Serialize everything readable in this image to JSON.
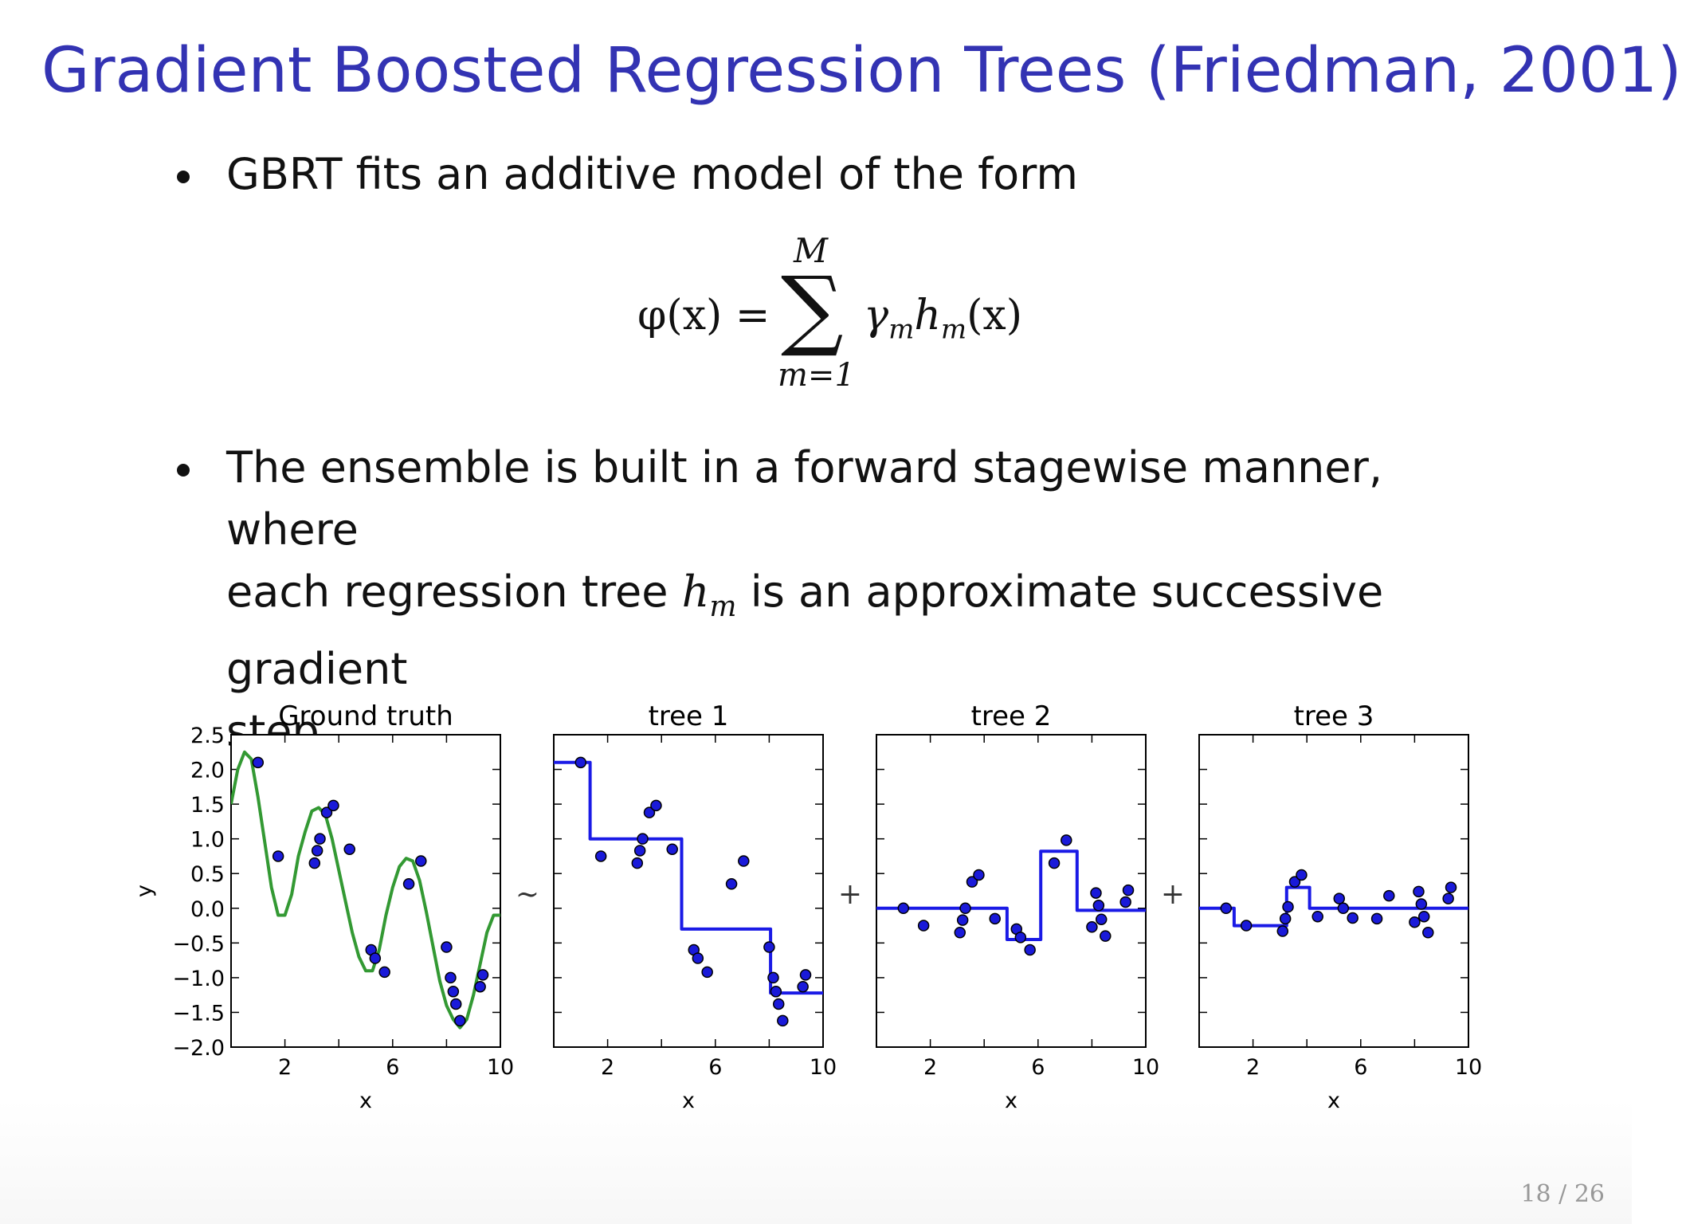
{
  "slide": {
    "title": "Gradient Boosted Regression Trees (Friedman, 2001)",
    "bullet1": "GBRT fits an additive model of the form",
    "equation": {
      "lhs": "φ(x) =",
      "sigma": "∑",
      "upper": "M",
      "lower": "m=1",
      "rhs_gamma": "γ",
      "rhs_gamma_sub": "m",
      "rhs_h": "h",
      "rhs_h_sub": "m",
      "rhs_arg": "(x)"
    },
    "bullet2_line1": "The ensemble is built in a forward stagewise manner, where",
    "bullet2_line2_a": "each regression tree ",
    "bullet2_line2_h": "h",
    "bullet2_line2_sub": "m",
    "bullet2_line2_b": " is an approximate successive gradient",
    "bullet2_line3": "step.",
    "page_number": "18 / 26",
    "operators": [
      "~",
      "+",
      "+"
    ]
  },
  "chart_data": [
    {
      "type": "line+scatter",
      "title": "Ground truth",
      "xlabel": "x",
      "ylabel": "y",
      "xlim": [
        0,
        10
      ],
      "ylim": [
        -2.0,
        2.5
      ],
      "xticks": [
        "2",
        "6",
        "10"
      ],
      "yticks": [
        "2.5",
        "2.0",
        "1.5",
        "1.0",
        "0.5",
        "0.0",
        "−0.5",
        "−1.0",
        "−1.5",
        "−2.0"
      ],
      "colors": {
        "curve": "#339933",
        "points": "#1a1ad9"
      },
      "curve_x": [
        0.0,
        0.25,
        0.5,
        0.75,
        1.0,
        1.25,
        1.5,
        1.75,
        2.0,
        2.25,
        2.5,
        2.75,
        3.0,
        3.25,
        3.5,
        3.75,
        4.0,
        4.25,
        4.5,
        4.75,
        5.0,
        5.25,
        5.5,
        5.75,
        6.0,
        6.25,
        6.5,
        6.75,
        7.0,
        7.25,
        7.5,
        7.75,
        8.0,
        8.25,
        8.5,
        8.75,
        9.0,
        9.25,
        9.5,
        9.75,
        10.0
      ],
      "curve_y": [
        1.5,
        2.0,
        2.25,
        2.15,
        1.6,
        0.95,
        0.3,
        -0.1,
        -0.1,
        0.2,
        0.75,
        1.1,
        1.4,
        1.45,
        1.35,
        1.0,
        0.55,
        0.1,
        -0.35,
        -0.7,
        -0.9,
        -0.9,
        -0.6,
        -0.1,
        0.3,
        0.6,
        0.72,
        0.68,
        0.4,
        -0.05,
        -0.55,
        -1.05,
        -1.4,
        -1.6,
        -1.72,
        -1.6,
        -1.25,
        -0.8,
        -0.35,
        -0.1,
        -0.1
      ],
      "points_x": [
        1.0,
        1.75,
        3.1,
        3.2,
        3.3,
        3.55,
        3.8,
        4.4,
        5.2,
        5.35,
        5.7,
        6.6,
        7.05,
        8.0,
        8.15,
        8.25,
        8.35,
        8.5,
        9.25,
        9.35
      ],
      "points_y": [
        2.1,
        0.75,
        0.65,
        0.83,
        1.0,
        1.38,
        1.48,
        0.85,
        -0.6,
        -0.72,
        -0.92,
        0.35,
        0.68,
        -0.56,
        -1.0,
        -1.2,
        -1.38,
        -1.62,
        -1.13,
        -0.96
      ]
    },
    {
      "type": "step+scatter",
      "title": "tree 1",
      "xlabel": "x",
      "xlim": [
        0,
        10
      ],
      "ylim": [
        -2.0,
        2.5
      ],
      "xticks": [
        "2",
        "6",
        "10"
      ],
      "colors": {
        "line": "#1a1ae6",
        "points": "#1a1ad9"
      },
      "step_x": [
        0,
        1.35,
        1.35,
        4.75,
        4.75,
        8.05,
        8.05,
        10
      ],
      "step_y": [
        2.1,
        2.1,
        1.0,
        1.0,
        -0.3,
        -0.3,
        -1.22,
        -1.22
      ],
      "points_x": [
        1.0,
        1.75,
        3.1,
        3.2,
        3.3,
        3.55,
        3.8,
        4.4,
        5.2,
        5.35,
        5.7,
        6.6,
        7.05,
        8.0,
        8.15,
        8.25,
        8.35,
        8.5,
        9.25,
        9.35
      ],
      "points_y": [
        2.1,
        0.75,
        0.65,
        0.83,
        1.0,
        1.38,
        1.48,
        0.85,
        -0.6,
        -0.72,
        -0.92,
        0.35,
        0.68,
        -0.56,
        -1.0,
        -1.2,
        -1.38,
        -1.62,
        -1.13,
        -0.96
      ]
    },
    {
      "type": "step+scatter",
      "title": "tree 2",
      "xlabel": "x",
      "xlim": [
        0,
        10
      ],
      "ylim": [
        -2.0,
        2.5
      ],
      "xticks": [
        "2",
        "6",
        "10"
      ],
      "colors": {
        "line": "#1a1ae6",
        "points": "#1a1ad9"
      },
      "step_x": [
        0,
        4.85,
        4.85,
        6.1,
        6.1,
        7.45,
        7.45,
        10
      ],
      "step_y": [
        0.0,
        0.0,
        -0.45,
        -0.45,
        0.82,
        0.82,
        -0.03,
        -0.03
      ],
      "points_x": [
        1.0,
        1.75,
        3.1,
        3.2,
        3.3,
        3.55,
        3.8,
        4.4,
        5.2,
        5.35,
        5.7,
        6.6,
        7.05,
        8.0,
        8.15,
        8.25,
        8.35,
        8.5,
        9.25,
        9.35
      ],
      "points_y": [
        0.0,
        -0.25,
        -0.35,
        -0.17,
        0.0,
        0.38,
        0.48,
        -0.15,
        -0.3,
        -0.42,
        -0.6,
        0.65,
        0.98,
        -0.27,
        0.22,
        0.04,
        -0.16,
        -0.4,
        0.09,
        0.26
      ]
    },
    {
      "type": "step+scatter",
      "title": "tree 3",
      "xlabel": "x",
      "xlim": [
        0,
        10
      ],
      "ylim": [
        -2.0,
        2.5
      ],
      "xticks": [
        "2",
        "6",
        "10"
      ],
      "colors": {
        "line": "#1a1ae6",
        "points": "#1a1ad9"
      },
      "step_x": [
        0,
        1.3,
        1.3,
        3.25,
        3.25,
        4.1,
        4.1,
        10
      ],
      "step_y": [
        0.0,
        0.0,
        -0.25,
        -0.25,
        0.3,
        0.3,
        0.0,
        0.0
      ],
      "points_x": [
        1.0,
        1.75,
        3.1,
        3.2,
        3.3,
        3.55,
        3.8,
        4.4,
        5.2,
        5.35,
        5.7,
        6.6,
        7.05,
        8.0,
        8.15,
        8.25,
        8.35,
        8.5,
        9.25,
        9.35
      ],
      "points_y": [
        0.0,
        -0.25,
        -0.33,
        -0.15,
        0.02,
        0.38,
        0.48,
        -0.12,
        0.14,
        0.0,
        -0.14,
        -0.15,
        0.18,
        -0.2,
        0.24,
        0.06,
        -0.12,
        -0.35,
        0.14,
        0.3
      ]
    }
  ]
}
